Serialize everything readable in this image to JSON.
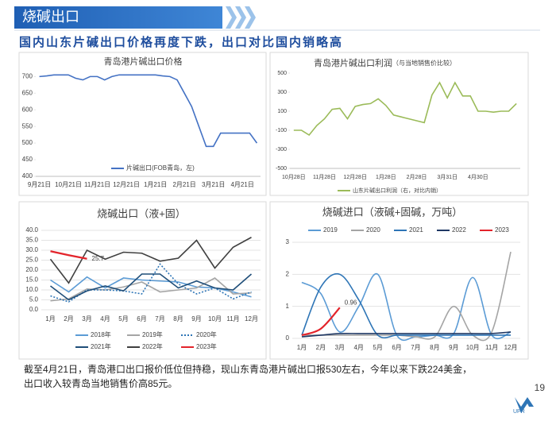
{
  "header": "烧碱出口",
  "subtitle": "国内山东片碱出口价格再度下跌，出口对比国内销略高",
  "chart_data": [
    {
      "type": "line",
      "title": "青岛港片碱出口价格",
      "categories": [
        "9月21日",
        null,
        null,
        null,
        "10月21日",
        null,
        null,
        null,
        "11月21日",
        null,
        null,
        null,
        "12月21日",
        null,
        null,
        null,
        "1月21日",
        null,
        null,
        null,
        "2月21日",
        null,
        null,
        null,
        "3月21日",
        null,
        null,
        null,
        "4月21日",
        null,
        null
      ],
      "series": [
        {
          "name": "片碱出口(FOB青岛，左)",
          "color": "#4472c4",
          "values": [
            700,
            702,
            705,
            705,
            705,
            695,
            690,
            700,
            700,
            690,
            700,
            705,
            705,
            705,
            705,
            705,
            705,
            702,
            700,
            690,
            650,
            610,
            550,
            490,
            490,
            530,
            530,
            530,
            530,
            530,
            500
          ]
        }
      ],
      "ylim": [
        400,
        720
      ],
      "yticks": [
        400,
        450,
        500,
        550,
        600,
        650,
        700
      ],
      "grid": false
    },
    {
      "type": "line",
      "title": "青岛港片碱出口利润",
      "subtitle": "（与当地销售价比较）",
      "categories": [
        "10月28日",
        null,
        null,
        null,
        "11月28日",
        null,
        null,
        null,
        "12月28日",
        null,
        null,
        null,
        "1月28日",
        null,
        null,
        null,
        "2月28日",
        null,
        null,
        null,
        "3月31日",
        null,
        null,
        null,
        "4月30日",
        null,
        null,
        null,
        null,
        null
      ],
      "series": [
        {
          "name": "山东片碱出口利润（右，对比内销）",
          "color": "#9bbb59",
          "values": [
            -100,
            -100,
            -150,
            -50,
            20,
            120,
            130,
            20,
            150,
            170,
            180,
            230,
            160,
            60,
            40,
            20,
            0,
            -20,
            270,
            400,
            240,
            400,
            260,
            260,
            100,
            100,
            90,
            100,
            100,
            180
          ]
        }
      ],
      "ylim": [
        -500,
        500
      ],
      "yticks": [
        -500,
        -300,
        -100,
        100,
        300,
        500
      ],
      "grid": false
    },
    {
      "type": "line",
      "title": "烧碱出口（液+固）",
      "categories": [
        "1月",
        "2月",
        "3月",
        "4月",
        "5月",
        "6月",
        "7月",
        "8月",
        "9月",
        "10月",
        "11月",
        "12月"
      ],
      "series": [
        {
          "name": "2018年",
          "color": "#5b9bd5",
          "values": [
            15,
            9,
            16.5,
            11,
            16,
            15,
            14.5,
            14,
            11.5,
            11,
            9,
            6.5
          ]
        },
        {
          "name": "2019年",
          "color": "#a5a5a5",
          "values": [
            4.5,
            5.5,
            10.5,
            10,
            11.5,
            14,
            9,
            10,
            11,
            16,
            8,
            8.5
          ]
        },
        {
          "name": "2020年",
          "color": "#2e75b6",
          "dashed": true,
          "values": [
            7,
            4,
            10,
            10,
            9.5,
            8,
            23,
            13,
            8,
            11,
            5.5,
            9
          ]
        },
        {
          "name": "2021年",
          "color": "#1f4e79",
          "values": [
            12,
            5,
            9.5,
            12,
            9.5,
            18,
            18,
            11,
            14.5,
            11,
            10,
            18
          ]
        },
        {
          "name": "2022年",
          "color": "#404040",
          "values": [
            25.5,
            13.5,
            30,
            25.5,
            29,
            28.5,
            24.5,
            26,
            35,
            21,
            31.5,
            36.5
          ]
        },
        {
          "name": "2023年",
          "color": "#e3242b",
          "values": [
            29.5,
            27.5,
            25.7,
            null,
            null,
            null,
            null,
            null,
            null,
            null,
            null,
            null
          ]
        }
      ],
      "ylim": [
        0,
        40
      ],
      "yticks": [
        {
          "value": 0,
          "label": "0.0"
        },
        {
          "value": 5,
          "label": "5.0"
        },
        {
          "value": 10,
          "label": "10.0"
        },
        {
          "value": 15,
          "label": "15.0"
        },
        {
          "value": 20,
          "label": "20.0"
        },
        {
          "value": 25,
          "label": "25.0"
        },
        {
          "value": 30,
          "label": "30.0"
        },
        {
          "value": 35,
          "label": "35.0"
        },
        {
          "value": 40,
          "label": "40.0"
        }
      ],
      "grid": true
    },
    {
      "type": "line",
      "title": "烧碱进口（液碱+固碱，万吨）",
      "smooth": true,
      "categories": [
        "1月",
        "2月",
        "3月",
        "4月",
        "5月",
        "6月",
        "7月",
        "8月",
        "9月",
        "10月",
        "11月",
        "12月"
      ],
      "series": [
        {
          "name": "2019",
          "color": "#5b9bd5",
          "values": [
            1.75,
            1.4,
            0.2,
            1.0,
            2.0,
            0.1,
            0.05,
            0.1,
            0.15,
            1.9,
            0.1,
            0.2
          ]
        },
        {
          "name": "2020",
          "color": "#a5a5a5",
          "values": [
            0.1,
            0.1,
            0.1,
            0.1,
            0.1,
            0.1,
            0.05,
            0.05,
            1.0,
            0.1,
            0.2,
            2.7
          ]
        },
        {
          "name": "2021",
          "color": "#2e75b6",
          "values": [
            0.1,
            1.6,
            2.0,
            1.2,
            0.1,
            0.1,
            0.1,
            0.1,
            0.1,
            0.1,
            0.1,
            0.1
          ]
        },
        {
          "name": "2022",
          "color": "#1f3864",
          "values": [
            0.05,
            0.1,
            0.15,
            0.15,
            0.15,
            0.15,
            0.15,
            0.15,
            0.15,
            0.15,
            0.15,
            0.2
          ]
        },
        {
          "name": "2023",
          "color": "#e3242b",
          "values": [
            0.1,
            0.3,
            0.96,
            null,
            null,
            null,
            null,
            null,
            null,
            null,
            null,
            null
          ]
        }
      ],
      "ylim": [
        0,
        3
      ],
      "yticks": [
        0,
        1,
        2,
        3
      ],
      "grid": true
    }
  ],
  "footer": [
    "截至4月21日，青岛港口出口报价低位但持稳，现山东青岛港片碱出口报530左右，今年以来下跌224美金，",
    "出口收入较青岛当地销售价高85元。"
  ],
  "page_number": "19",
  "logo": "UPR"
}
